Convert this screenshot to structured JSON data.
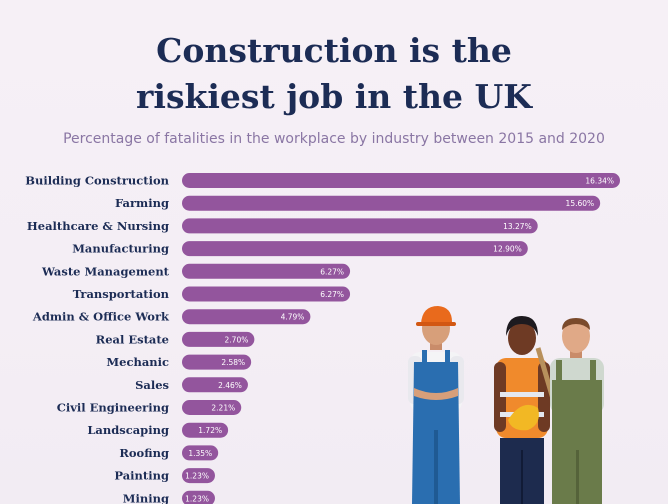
{
  "title_lines": [
    "Construction is the",
    "riskiest job in the UK"
  ],
  "subtitle": "Percentage of fatalities in the workplace by industry between 2015 and 2020",
  "colors": {
    "title": "#1c2c55",
    "subtitle": "#8a76a4",
    "bar": "#93559d",
    "label": "#1c2c55"
  },
  "chart_data": {
    "type": "bar",
    "orientation": "horizontal",
    "title": "Construction is the riskiest job in the UK",
    "subtitle": "Percentage of fatalities in the workplace by industry between 2015 and 2020",
    "categories": [
      "Building Construction",
      "Farming",
      "Healthcare & Nursing",
      "Manufacturing",
      "Waste Management",
      "Transportation",
      "Admin & Office Work",
      "Real Estate",
      "Mechanic",
      "Sales",
      "Civil Engineering",
      "Landscaping",
      "Roofing",
      "Painting",
      "Mining"
    ],
    "values": [
      16.34,
      15.6,
      13.27,
      12.9,
      6.27,
      6.27,
      4.79,
      2.7,
      2.58,
      2.46,
      2.21,
      1.72,
      1.35,
      1.23,
      1.23
    ],
    "value_labels": [
      "16.34%",
      "15.60%",
      "13.27%",
      "12.90%",
      "6.27%",
      "6.27%",
      "4.79%",
      "2.70%",
      "2.58%",
      "2.46%",
      "2.21%",
      "1.72%",
      "1.35%",
      "1.23%",
      "1.23%"
    ],
    "grid": false
  }
}
